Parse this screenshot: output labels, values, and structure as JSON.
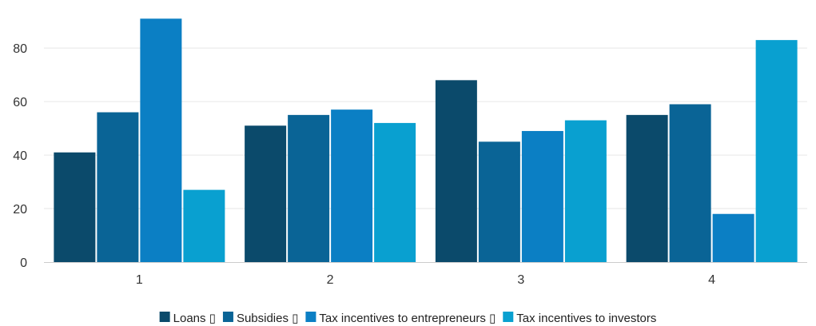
{
  "chart_data": {
    "type": "bar",
    "categories": [
      "1",
      "2",
      "3",
      "4"
    ],
    "series": [
      {
        "name": "Loans",
        "legend_label": "Loans ▯",
        "color": "#0b4a6b",
        "values": [
          41,
          51,
          68,
          55
        ]
      },
      {
        "name": "Subsidies",
        "legend_label": "Subsidies ▯",
        "color": "#0a6496",
        "values": [
          56,
          55,
          45,
          59
        ]
      },
      {
        "name": "Tax incentives to entrepreneurs",
        "legend_label": "Tax incentives to entrepreneurs ▯",
        "color": "#0b7fc4",
        "values": [
          91,
          57,
          49,
          18
        ]
      },
      {
        "name": "Tax incentives to investors",
        "legend_label": "Tax incentives to investors",
        "color": "#09a0d0",
        "values": [
          27,
          52,
          53,
          83
        ]
      }
    ],
    "yticks": [
      0,
      20,
      40,
      60,
      80
    ],
    "ylim": [
      0,
      92
    ],
    "title": "",
    "xlabel": "",
    "ylabel": "",
    "grid": true,
    "legend_position": "bottom"
  }
}
